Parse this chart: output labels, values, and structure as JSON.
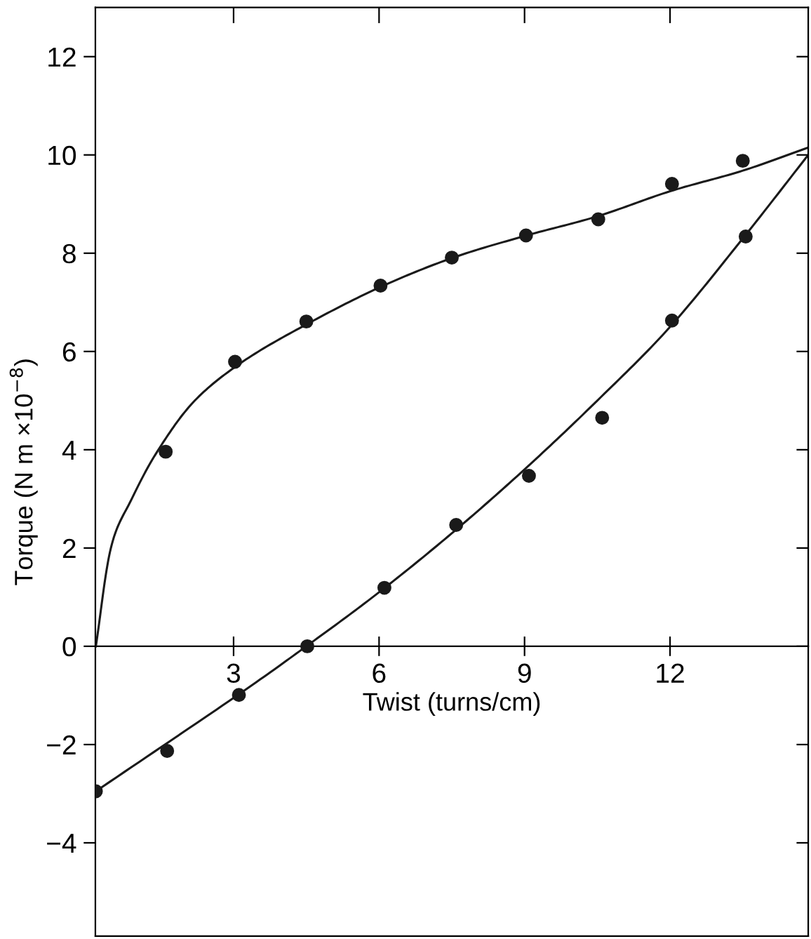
{
  "chart_data": {
    "type": "scatter",
    "xlabel": "Twist (turns/cm)",
    "ylabel": "Torque (N m ×10$^{−8}$)",
    "xlim": [
      0.15,
      14.85
    ],
    "ylim": [
      -5.9,
      13
    ],
    "xticks": [
      3,
      6,
      9,
      12
    ],
    "yticks": [
      {
        "value": -4,
        "label": "−4"
      },
      {
        "value": -2,
        "label": "−2"
      },
      0,
      2,
      4,
      6,
      8,
      10,
      12
    ],
    "grid": false,
    "legend": false,
    "marker": "circle",
    "series": [
      {
        "color": "#1a1a1a",
        "x": [
          1.6,
          3.03,
          4.5,
          6.03,
          7.5,
          9.03,
          10.52,
          12.04,
          13.5
        ],
        "values": [
          3.96,
          5.79,
          6.61,
          7.34,
          7.91,
          8.36,
          8.69,
          9.41,
          9.88
        ]
      },
      {
        "color": "#1a1a1a",
        "x": [
          0.16,
          1.63,
          3.11,
          4.52,
          6.11,
          7.59,
          9.09,
          10.6,
          12.04,
          13.56
        ],
        "values": [
          -2.95,
          -2.13,
          -0.99,
          0,
          1.19,
          2.47,
          3.47,
          4.65,
          6.63,
          8.34
        ]
      },
      {
        "type": "line",
        "color": "#1a1a1a",
        "marker": "none",
        "line_style": "solid",
        "x": [
          0.16,
          0.47,
          0.9,
          1.45,
          2.2,
          3.2,
          4.5,
          6,
          7.5,
          9,
          10.5,
          12,
          13.5,
          14.85
        ],
        "values": [
          0,
          2,
          3,
          4,
          5,
          5.8,
          6.55,
          7.3,
          7.9,
          8.35,
          8.75,
          9.26,
          9.68,
          10.15
        ]
      },
      {
        "type": "line",
        "color": "#1a1a1a",
        "marker": "none",
        "line_style": "solid",
        "x": [
          0.16,
          3,
          4.5,
          6,
          7.5,
          9,
          10.5,
          12,
          13.5,
          14.85
        ],
        "values": [
          -2.95,
          -1.05,
          0,
          1.1,
          2.3,
          3.6,
          5.0,
          6.5,
          8.3,
          10.0
        ]
      }
    ]
  }
}
